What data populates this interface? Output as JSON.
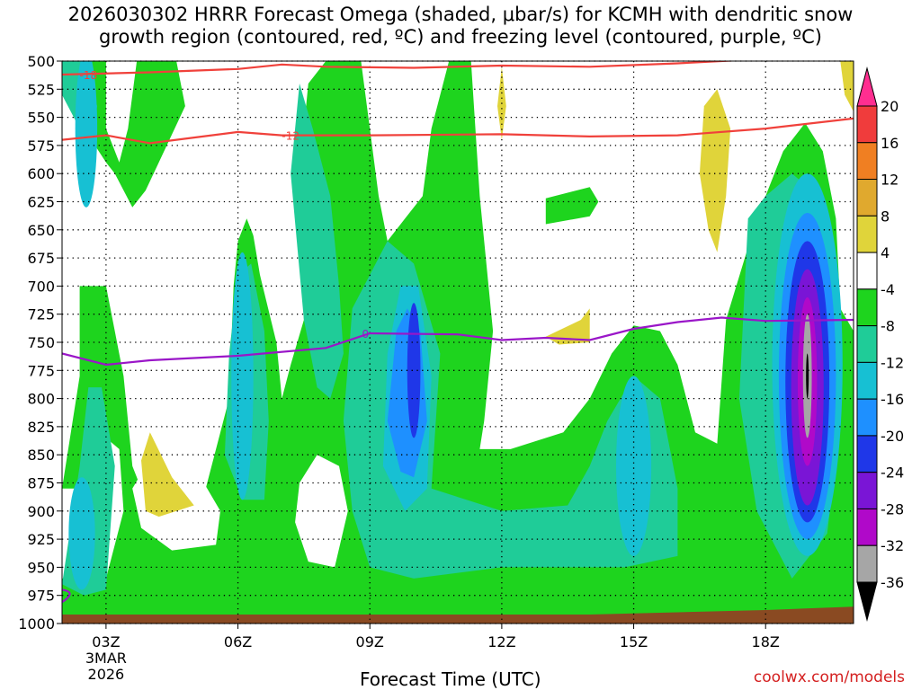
{
  "title_line1": "2026030302 HRRR Forecast Omega (shaded, μbar/s) for KCMH with dendritic snow",
  "title_line2": "growth region (contoured, red, ºC) and freezing level (contoured, purple, ºC)",
  "credit": "coolwx.com/models",
  "chart_data": {
    "type": "contour",
    "title": "2026030302 HRRR Forecast Omega (shaded, μbar/s) for KCMH with dendritic snow growth region (contoured, red, ºC) and freezing level (contoured, purple, ºC)",
    "xlabel": "Forecast Time (UTC)",
    "ylabel": "",
    "x_ticks": [
      "03Z",
      "06Z",
      "09Z",
      "12Z",
      "15Z",
      "18Z"
    ],
    "x_tick_extra": [
      "3MAR",
      "2026"
    ],
    "y_ticks": [
      500,
      525,
      550,
      575,
      600,
      625,
      650,
      675,
      700,
      725,
      750,
      775,
      800,
      825,
      850,
      875,
      900,
      925,
      950,
      975,
      1000
    ],
    "ylim": [
      1000,
      500
    ],
    "xlim_hours": [
      2,
      20
    ],
    "grid": true,
    "colorbar": {
      "levels": [
        20,
        16,
        12,
        8,
        4,
        -4,
        -8,
        -12,
        -16,
        -20,
        -24,
        -28,
        -32,
        -36
      ],
      "colors": [
        "#ff2e90",
        "#f03c3c",
        "#f07f22",
        "#e0a92e",
        "#e0d43a",
        "#ffffff",
        "#1ed41e",
        "#1fcc98",
        "#17c0d3",
        "#1e90ff",
        "#1f37e8",
        "#7a15d6",
        "#b009c9",
        "#a6a6a6",
        "#000000"
      ]
    },
    "contours": [
      {
        "label": "-18",
        "color": "#f0413b",
        "points": [
          [
            2.0,
            512
          ],
          [
            4.0,
            510
          ],
          [
            6.0,
            507
          ],
          [
            7.0,
            503
          ],
          [
            8.0,
            505
          ],
          [
            10.0,
            506
          ],
          [
            12.0,
            504
          ],
          [
            14.0,
            505
          ],
          [
            16.0,
            502
          ],
          [
            18.0,
            498
          ],
          [
            20.0,
            493
          ]
        ]
      },
      {
        "label": "-12",
        "color": "#f0413b",
        "points": [
          [
            2.0,
            570
          ],
          [
            3.0,
            566
          ],
          [
            4.0,
            573
          ],
          [
            5.0,
            568
          ],
          [
            6.0,
            563
          ],
          [
            7.0,
            566
          ],
          [
            9.0,
            566
          ],
          [
            12.0,
            565
          ],
          [
            14.0,
            567
          ],
          [
            16.0,
            566
          ],
          [
            18.0,
            560
          ],
          [
            20.0,
            551
          ]
        ]
      },
      {
        "label": "0",
        "color": "#9a16c8",
        "points": [
          [
            2.0,
            760
          ],
          [
            3.0,
            770
          ],
          [
            4.0,
            766
          ],
          [
            6.0,
            762
          ],
          [
            8.0,
            755
          ],
          [
            9.0,
            742
          ],
          [
            11.0,
            743
          ],
          [
            12.0,
            748
          ],
          [
            13.0,
            746
          ],
          [
            14.0,
            748
          ],
          [
            15.0,
            738
          ],
          [
            16.0,
            732
          ],
          [
            17.0,
            728
          ],
          [
            18.0,
            731
          ],
          [
            20.0,
            730
          ]
        ]
      }
    ],
    "annotations": []
  }
}
